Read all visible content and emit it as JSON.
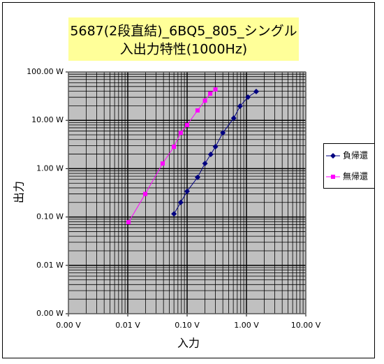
{
  "chart_data": {
    "type": "line",
    "title": [
      "5687(2段直結)_6BQ5_805_シングル",
      "入出力特性(1000Hz)"
    ],
    "x_label": "入力",
    "y_label": "出力",
    "x_scale": "log",
    "y_scale": "log",
    "grid": true,
    "minor_grid": true,
    "legend": "right",
    "xlim": [
      0.001,
      10
    ],
    "xticks": [
      {
        "value": 0.001,
        "label": "0.00 V"
      },
      {
        "value": 0.01,
        "label": "0.01 V"
      },
      {
        "value": 0.1,
        "label": "0.10 V"
      },
      {
        "value": 1,
        "label": "1.00 V"
      },
      {
        "value": 10,
        "label": "10.00 V"
      }
    ],
    "ylim": [
      0.001,
      100
    ],
    "yticks": [
      {
        "value": 0.001,
        "label": "0.00 W"
      },
      {
        "value": 0.01,
        "label": "0.01 W"
      },
      {
        "value": 0.1,
        "label": "0.10 W"
      },
      {
        "value": 1,
        "label": "1.00 W"
      },
      {
        "value": 10,
        "label": "10.00 W"
      },
      {
        "value": 100,
        "label": "100.00 W"
      }
    ],
    "series": [
      {
        "name": "負帰還",
        "color": "#000080",
        "marker": "diamond",
        "x": [
          0.06,
          0.078,
          0.1,
          0.15,
          0.2,
          0.25,
          0.3,
          0.4,
          0.61,
          0.78,
          1.06,
          1.46
        ],
        "values": [
          0.116,
          0.2,
          0.34,
          0.66,
          1.28,
          1.97,
          2.84,
          5.5,
          11.1,
          19.6,
          30.2,
          39.4
        ]
      },
      {
        "name": "無帰還",
        "color": "#ff00ff",
        "marker": "square",
        "x": [
          0.0103,
          0.0197,
          0.0387,
          0.06,
          0.078,
          0.1,
          0.15,
          0.2,
          0.245,
          0.3
        ],
        "values": [
          0.078,
          0.3,
          1.28,
          2.84,
          5.5,
          8.0,
          16.0,
          25.6,
          35.6,
          43.5
        ]
      }
    ]
  }
}
